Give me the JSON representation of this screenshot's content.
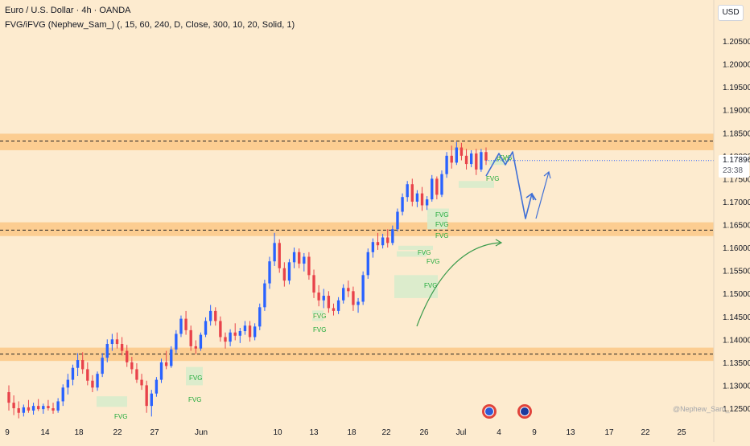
{
  "header": {
    "title": "Euro / U.S. Dollar · 4h · OANDA",
    "indicator": "FVG/iFVG (Nephew_Sam_) (, 15, 60, 240, D, Close, 300, 10, 20, Solid, 1)"
  },
  "price_scale": {
    "currency_label": "USD",
    "current_price": "1.17896",
    "countdown": "23:38"
  },
  "watermark": "@Nephew_Sam_",
  "colors": {
    "background": "#fdebcf",
    "up": "#2962ff",
    "down": "#e8424a",
    "zone": "#fbc886",
    "fvg": "#d8eccb",
    "fvg_text": "#22ab3c",
    "projection": "#3f6fd6",
    "arrow": "#3a9b4c",
    "current_price_marker": "#2962ff"
  },
  "icons": {
    "event_1": "us-flag-event-icon",
    "event_2": "eu-flag-event-icon"
  },
  "chart_data": {
    "type": "candlestick",
    "symbol": "EUR/USD",
    "timeframe": "4h",
    "y_axis": {
      "ylim": [
        1.124,
        1.2115
      ],
      "tick_labels": [
        "1.12500",
        "1.13000",
        "1.13500",
        "1.14000",
        "1.14500",
        "1.15000",
        "1.15500",
        "1.16000",
        "1.16500",
        "1.17000",
        "1.17500",
        "1.18000",
        "1.18500",
        "1.19000",
        "1.19500",
        "1.20000",
        "1.20500"
      ]
    },
    "x_axis": {
      "tick_labels": [
        "9",
        "14",
        "18",
        "22",
        "27",
        "Jun",
        "10",
        "13",
        "18",
        "22",
        "26",
        "Jul",
        "4",
        "9",
        "13",
        "17",
        "22",
        "25"
      ]
    },
    "zones": [
      {
        "low": 1.1812,
        "high": 1.1848,
        "line": 1.1832
      },
      {
        "low": 1.1625,
        "high": 1.1655,
        "line": 1.1638
      },
      {
        "low": 1.1353,
        "high": 1.1382,
        "line": 1.1368
      }
    ],
    "fvg_labels": [
      "FVG",
      "FVG",
      "FVG",
      "FVG",
      "FVG",
      "FVG",
      "FVG",
      "FVG",
      "FVG",
      "FVG",
      "FVG",
      "FVG",
      "FVG",
      "FVG"
    ],
    "fvg_zones": [
      {
        "price_low": 1.1253,
        "price_high": 1.1276
      },
      {
        "price_low": 1.13,
        "price_high": 1.134
      },
      {
        "price_low": 1.1455,
        "price_high": 1.1463
      },
      {
        "price_low": 1.144,
        "price_high": 1.1447
      },
      {
        "price_low": 1.149,
        "price_high": 1.154
      },
      {
        "price_low": 1.158,
        "price_high": 1.1592
      },
      {
        "price_low": 1.1595,
        "price_high": 1.1604
      },
      {
        "price_low": 1.164,
        "price_high": 1.1662
      },
      {
        "price_low": 1.1655,
        "price_high": 1.1672
      },
      {
        "price_low": 1.1667,
        "price_high": 1.1685
      },
      {
        "price_low": 1.173,
        "price_high": 1.1745
      },
      {
        "price_low": 1.178,
        "price_high": 1.179
      }
    ],
    "current_price": 1.17896,
    "candles": [
      {
        "o": 1.1285,
        "h": 1.13,
        "l": 1.1245,
        "c": 1.1262
      },
      {
        "o": 1.1262,
        "h": 1.1278,
        "l": 1.1235,
        "c": 1.125
      },
      {
        "o": 1.125,
        "h": 1.1265,
        "l": 1.1228,
        "c": 1.124
      },
      {
        "o": 1.124,
        "h": 1.1258,
        "l": 1.1232,
        "c": 1.1252
      },
      {
        "o": 1.1252,
        "h": 1.1268,
        "l": 1.124,
        "c": 1.1245
      },
      {
        "o": 1.1245,
        "h": 1.1262,
        "l": 1.1236,
        "c": 1.1255
      },
      {
        "o": 1.1255,
        "h": 1.127,
        "l": 1.1244,
        "c": 1.1248
      },
      {
        "o": 1.1248,
        "h": 1.126,
        "l": 1.1238,
        "c": 1.1255
      },
      {
        "o": 1.1255,
        "h": 1.1268,
        "l": 1.1245,
        "c": 1.125
      },
      {
        "o": 1.125,
        "h": 1.1262,
        "l": 1.1238,
        "c": 1.1245
      },
      {
        "o": 1.1245,
        "h": 1.1272,
        "l": 1.124,
        "c": 1.1265
      },
      {
        "o": 1.1265,
        "h": 1.1302,
        "l": 1.1255,
        "c": 1.1295
      },
      {
        "o": 1.1295,
        "h": 1.1325,
        "l": 1.128,
        "c": 1.1312
      },
      {
        "o": 1.1312,
        "h": 1.1345,
        "l": 1.13,
        "c": 1.1338
      },
      {
        "o": 1.1338,
        "h": 1.137,
        "l": 1.132,
        "c": 1.1355
      },
      {
        "o": 1.1355,
        "h": 1.1372,
        "l": 1.1325,
        "c": 1.1335
      },
      {
        "o": 1.1335,
        "h": 1.135,
        "l": 1.13,
        "c": 1.131
      },
      {
        "o": 1.131,
        "h": 1.1322,
        "l": 1.1285,
        "c": 1.1295
      },
      {
        "o": 1.1295,
        "h": 1.133,
        "l": 1.1288,
        "c": 1.1325
      },
      {
        "o": 1.1325,
        "h": 1.137,
        "l": 1.1318,
        "c": 1.136
      },
      {
        "o": 1.136,
        "h": 1.14,
        "l": 1.135,
        "c": 1.139
      },
      {
        "o": 1.139,
        "h": 1.1412,
        "l": 1.1375,
        "c": 1.14
      },
      {
        "o": 1.14,
        "h": 1.1415,
        "l": 1.138,
        "c": 1.139
      },
      {
        "o": 1.139,
        "h": 1.1405,
        "l": 1.1365,
        "c": 1.1375
      },
      {
        "o": 1.1375,
        "h": 1.1388,
        "l": 1.134,
        "c": 1.135
      },
      {
        "o": 1.135,
        "h": 1.1362,
        "l": 1.1325,
        "c": 1.1335
      },
      {
        "o": 1.1335,
        "h": 1.1348,
        "l": 1.1305,
        "c": 1.1312
      },
      {
        "o": 1.1312,
        "h": 1.1325,
        "l": 1.129,
        "c": 1.13
      },
      {
        "o": 1.13,
        "h": 1.131,
        "l": 1.124,
        "c": 1.1255
      },
      {
        "o": 1.1255,
        "h": 1.129,
        "l": 1.1232,
        "c": 1.1282
      },
      {
        "o": 1.1282,
        "h": 1.1318,
        "l": 1.1275,
        "c": 1.1312
      },
      {
        "o": 1.1312,
        "h": 1.1358,
        "l": 1.1305,
        "c": 1.135
      },
      {
        "o": 1.135,
        "h": 1.1375,
        "l": 1.1335,
        "c": 1.1342
      },
      {
        "o": 1.1342,
        "h": 1.1385,
        "l": 1.1338,
        "c": 1.1378
      },
      {
        "o": 1.1378,
        "h": 1.142,
        "l": 1.137,
        "c": 1.1412
      },
      {
        "o": 1.1412,
        "h": 1.1452,
        "l": 1.1405,
        "c": 1.1445
      },
      {
        "o": 1.1445,
        "h": 1.1462,
        "l": 1.141,
        "c": 1.142
      },
      {
        "o": 1.142,
        "h": 1.143,
        "l": 1.1375,
        "c": 1.1385
      },
      {
        "o": 1.1385,
        "h": 1.1398,
        "l": 1.1368,
        "c": 1.138
      },
      {
        "o": 1.138,
        "h": 1.1415,
        "l": 1.1375,
        "c": 1.141
      },
      {
        "o": 1.141,
        "h": 1.1448,
        "l": 1.1405,
        "c": 1.144
      },
      {
        "o": 1.144,
        "h": 1.1475,
        "l": 1.143,
        "c": 1.1462
      },
      {
        "o": 1.1462,
        "h": 1.147,
        "l": 1.143,
        "c": 1.144
      },
      {
        "o": 1.144,
        "h": 1.145,
        "l": 1.1395,
        "c": 1.1405
      },
      {
        "o": 1.1405,
        "h": 1.1415,
        "l": 1.138,
        "c": 1.1395
      },
      {
        "o": 1.1395,
        "h": 1.1422,
        "l": 1.1385,
        "c": 1.1415
      },
      {
        "o": 1.1415,
        "h": 1.1435,
        "l": 1.1398,
        "c": 1.1408
      },
      {
        "o": 1.1408,
        "h": 1.1425,
        "l": 1.1392,
        "c": 1.1418
      },
      {
        "o": 1.1418,
        "h": 1.144,
        "l": 1.141,
        "c": 1.143
      },
      {
        "o": 1.143,
        "h": 1.144,
        "l": 1.1395,
        "c": 1.1405
      },
      {
        "o": 1.1405,
        "h": 1.1435,
        "l": 1.1398,
        "c": 1.1428
      },
      {
        "o": 1.1428,
        "h": 1.1478,
        "l": 1.142,
        "c": 1.147
      },
      {
        "o": 1.147,
        "h": 1.153,
        "l": 1.1462,
        "c": 1.1522
      },
      {
        "o": 1.1522,
        "h": 1.158,
        "l": 1.151,
        "c": 1.157
      },
      {
        "o": 1.157,
        "h": 1.1632,
        "l": 1.156,
        "c": 1.161
      },
      {
        "o": 1.161,
        "h": 1.1618,
        "l": 1.1545,
        "c": 1.1555
      },
      {
        "o": 1.1555,
        "h": 1.1568,
        "l": 1.1515,
        "c": 1.1528
      },
      {
        "o": 1.1528,
        "h": 1.1575,
        "l": 1.152,
        "c": 1.1568
      },
      {
        "o": 1.1568,
        "h": 1.16,
        "l": 1.1555,
        "c": 1.159
      },
      {
        "o": 1.159,
        "h": 1.1598,
        "l": 1.1555,
        "c": 1.1565
      },
      {
        "o": 1.1565,
        "h": 1.1588,
        "l": 1.1548,
        "c": 1.158
      },
      {
        "o": 1.158,
        "h": 1.159,
        "l": 1.153,
        "c": 1.154
      },
      {
        "o": 1.154,
        "h": 1.1552,
        "l": 1.149,
        "c": 1.1502
      },
      {
        "o": 1.1502,
        "h": 1.1518,
        "l": 1.1472,
        "c": 1.1485
      },
      {
        "o": 1.1485,
        "h": 1.151,
        "l": 1.1468,
        "c": 1.1495
      },
      {
        "o": 1.1495,
        "h": 1.1505,
        "l": 1.1458,
        "c": 1.1468
      },
      {
        "o": 1.1468,
        "h": 1.1478,
        "l": 1.1452,
        "c": 1.1462
      },
      {
        "o": 1.1462,
        "h": 1.1492,
        "l": 1.1455,
        "c": 1.1485
      },
      {
        "o": 1.1485,
        "h": 1.152,
        "l": 1.1478,
        "c": 1.1512
      },
      {
        "o": 1.1512,
        "h": 1.1528,
        "l": 1.1492,
        "c": 1.1505
      },
      {
        "o": 1.1505,
        "h": 1.1515,
        "l": 1.1462,
        "c": 1.1475
      },
      {
        "o": 1.1475,
        "h": 1.149,
        "l": 1.1458,
        "c": 1.1482
      },
      {
        "o": 1.1482,
        "h": 1.1548,
        "l": 1.1475,
        "c": 1.154
      },
      {
        "o": 1.154,
        "h": 1.1598,
        "l": 1.1532,
        "c": 1.159
      },
      {
        "o": 1.159,
        "h": 1.162,
        "l": 1.1578,
        "c": 1.1612
      },
      {
        "o": 1.1612,
        "h": 1.1632,
        "l": 1.1595,
        "c": 1.1605
      },
      {
        "o": 1.1605,
        "h": 1.163,
        "l": 1.1598,
        "c": 1.1622
      },
      {
        "o": 1.1622,
        "h": 1.164,
        "l": 1.16,
        "c": 1.161
      },
      {
        "o": 1.161,
        "h": 1.1648,
        "l": 1.1605,
        "c": 1.164
      },
      {
        "o": 1.164,
        "h": 1.1685,
        "l": 1.1635,
        "c": 1.1678
      },
      {
        "o": 1.1678,
        "h": 1.1718,
        "l": 1.167,
        "c": 1.171
      },
      {
        "o": 1.171,
        "h": 1.1745,
        "l": 1.17,
        "c": 1.1738
      },
      {
        "o": 1.1738,
        "h": 1.175,
        "l": 1.169,
        "c": 1.17
      },
      {
        "o": 1.17,
        "h": 1.1725,
        "l": 1.1688,
        "c": 1.1718
      },
      {
        "o": 1.1718,
        "h": 1.1732,
        "l": 1.168,
        "c": 1.1692
      },
      {
        "o": 1.1692,
        "h": 1.1712,
        "l": 1.1682,
        "c": 1.1705
      },
      {
        "o": 1.1705,
        "h": 1.1758,
        "l": 1.17,
        "c": 1.175
      },
      {
        "o": 1.175,
        "h": 1.1755,
        "l": 1.1705,
        "c": 1.1715
      },
      {
        "o": 1.1715,
        "h": 1.1768,
        "l": 1.171,
        "c": 1.176
      },
      {
        "o": 1.176,
        "h": 1.1808,
        "l": 1.1752,
        "c": 1.18
      },
      {
        "o": 1.18,
        "h": 1.1822,
        "l": 1.1772,
        "c": 1.1785
      },
      {
        "o": 1.1785,
        "h": 1.183,
        "l": 1.178,
        "c": 1.1818
      },
      {
        "o": 1.1818,
        "h": 1.1828,
        "l": 1.179,
        "c": 1.18
      },
      {
        "o": 1.18,
        "h": 1.1815,
        "l": 1.177,
        "c": 1.1782
      },
      {
        "o": 1.1782,
        "h": 1.1812,
        "l": 1.1775,
        "c": 1.1805
      },
      {
        "o": 1.1805,
        "h": 1.1815,
        "l": 1.1758,
        "c": 1.177
      },
      {
        "o": 1.177,
        "h": 1.1815,
        "l": 1.1765,
        "c": 1.1808
      },
      {
        "o": 1.1808,
        "h": 1.1818,
        "l": 1.178,
        "c": 1.17896
      }
    ]
  }
}
